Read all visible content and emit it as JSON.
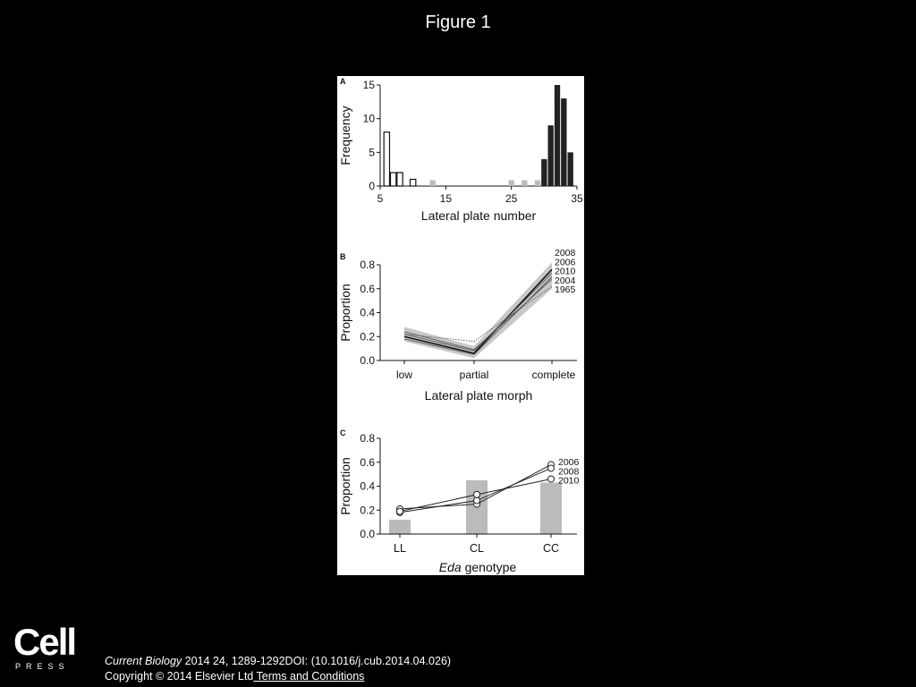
{
  "slide": {
    "title": "Figure 1",
    "citation_journal": "Current Biology",
    "citation_rest": " 2014 24, 1289-1292DOI: (10.1016/j.cub.2014.04.026)",
    "copyright": "Copyright © 2014 Elsevier Ltd",
    "terms_link": " Terms and Conditions",
    "logo_word": "Cell",
    "logo_sub": "PRESS"
  },
  "colors": {
    "panel_bg": "#ffffff",
    "dark": "#222222",
    "grey": "#bbbbbb",
    "band": "#c8c8c8"
  },
  "chart_data": [
    {
      "panel": "A",
      "type": "bar",
      "xlabel": "Lateral plate number",
      "ylabel": "Frequency",
      "xlim": [
        5,
        35
      ],
      "ylim": [
        0,
        15
      ],
      "xticks": [
        5,
        15,
        25,
        35
      ],
      "yticks": [
        0,
        5,
        10,
        15
      ],
      "groups": [
        {
          "style": "open",
          "bars": [
            {
              "x": 6,
              "y": 8
            },
            {
              "x": 7,
              "y": 2
            },
            {
              "x": 8,
              "y": 2
            },
            {
              "x": 10,
              "y": 1
            }
          ]
        },
        {
          "style": "grey",
          "bars": [
            {
              "x": 13,
              "y": 1
            },
            {
              "x": 25,
              "y": 1
            },
            {
              "x": 27,
              "y": 1
            },
            {
              "x": 29,
              "y": 1
            }
          ]
        },
        {
          "style": "dark",
          "bars": [
            {
              "x": 30,
              "y": 4
            },
            {
              "x": 31,
              "y": 9
            },
            {
              "x": 32,
              "y": 15
            },
            {
              "x": 33,
              "y": 13
            },
            {
              "x": 34,
              "y": 5
            }
          ]
        }
      ]
    },
    {
      "panel": "B",
      "type": "line",
      "xlabel": "Lateral plate morph",
      "ylabel": "Proportion",
      "categories": [
        "low",
        "partial",
        "complete"
      ],
      "ylim": [
        0,
        0.8
      ],
      "yticks": [
        "0.0",
        "0.2",
        "0.4",
        "0.6",
        "0.8"
      ],
      "band": {
        "lower": [
          0.16,
          0.02,
          0.6
        ],
        "upper": [
          0.28,
          0.12,
          0.82
        ]
      },
      "series": [
        {
          "name": "2008",
          "values": [
            0.2,
            0.06,
            0.76
          ],
          "style": "solid-dark"
        },
        {
          "name": "2006",
          "values": [
            0.22,
            0.08,
            0.73
          ],
          "style": "solid"
        },
        {
          "name": "2010",
          "values": [
            0.18,
            0.05,
            0.7
          ],
          "style": "solid"
        },
        {
          "name": "2004",
          "values": [
            0.24,
            0.09,
            0.68
          ],
          "style": "solid"
        },
        {
          "name": "1965",
          "values": [
            0.22,
            0.16,
            0.62
          ],
          "style": "dotted"
        }
      ]
    },
    {
      "panel": "C",
      "type": "bar+line",
      "xlabel_italic": "Eda",
      "xlabel_rest": " genotype",
      "ylabel": "Proportion",
      "categories": [
        "LL",
        "CL",
        "CC"
      ],
      "ylim": [
        0,
        0.8
      ],
      "yticks": [
        "0.0",
        "0.2",
        "0.4",
        "0.6",
        "0.8"
      ],
      "bars": [
        0.12,
        0.45,
        0.43
      ],
      "series": [
        {
          "name": "2006",
          "values": [
            0.21,
            0.25,
            0.58
          ]
        },
        {
          "name": "2008",
          "values": [
            0.18,
            0.28,
            0.55
          ]
        },
        {
          "name": "2010",
          "values": [
            0.19,
            0.33,
            0.46
          ]
        }
      ]
    }
  ]
}
